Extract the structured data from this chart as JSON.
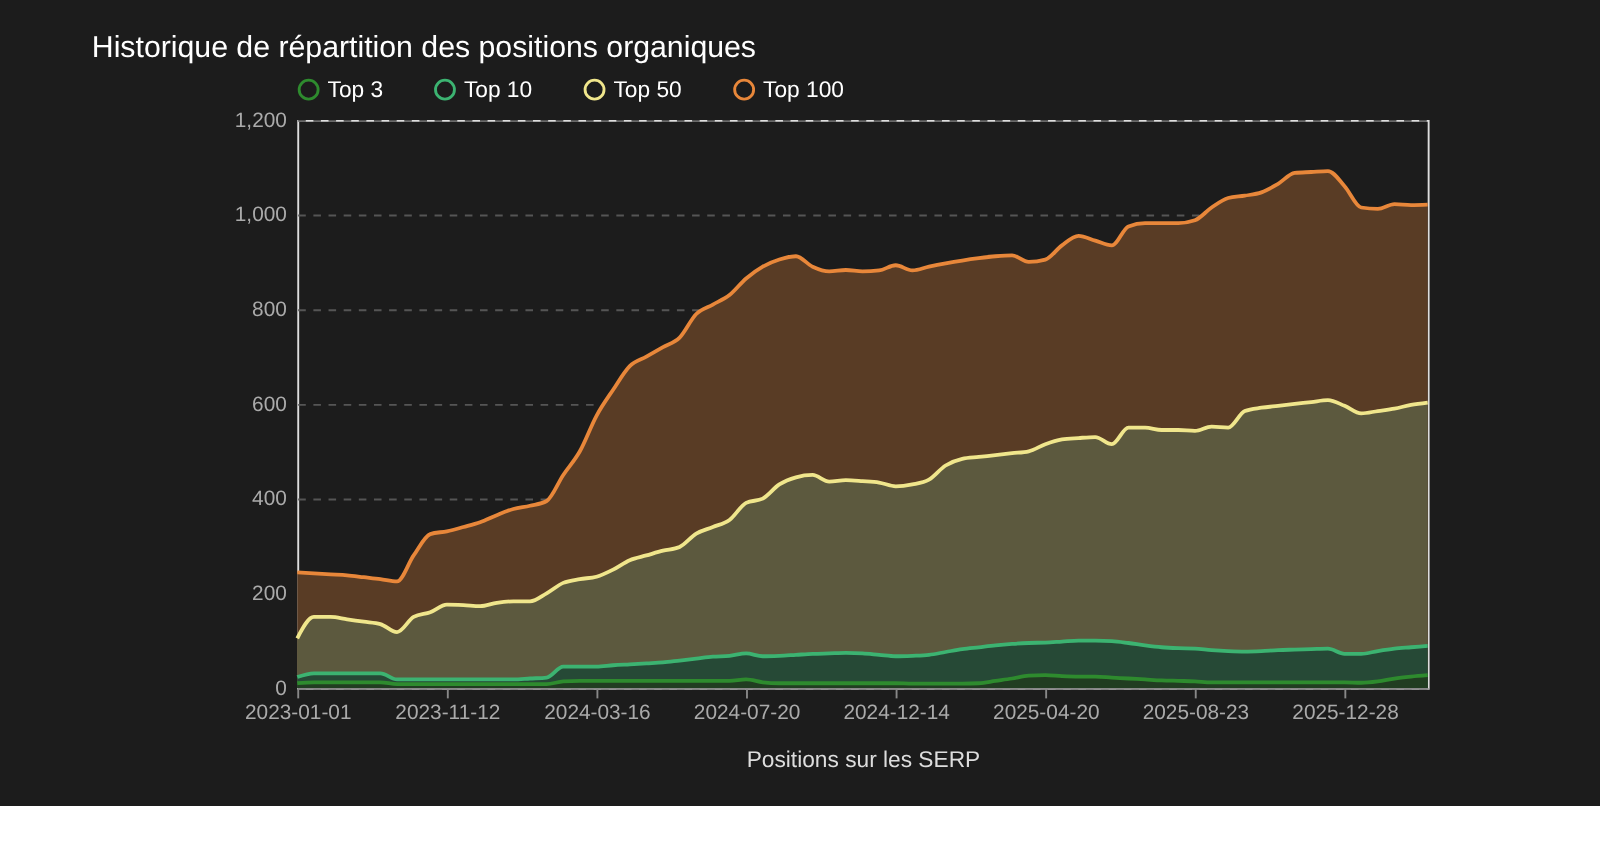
{
  "chart_data": {
    "type": "area",
    "title": "Historique de répartition des positions organiques",
    "xlabel": "Positions sur les SERP",
    "categories": [
      "2023-01-01",
      null,
      null,
      null,
      null,
      null,
      null,
      null,
      null,
      "2023-11-12",
      null,
      null,
      null,
      null,
      null,
      null,
      null,
      null,
      "2024-03-16",
      null,
      null,
      null,
      null,
      null,
      null,
      null,
      null,
      "2024-07-20",
      null,
      null,
      null,
      null,
      null,
      null,
      null,
      null,
      "2024-12-14",
      null,
      null,
      null,
      null,
      null,
      null,
      null,
      null,
      "2025-04-20",
      null,
      null,
      null,
      null,
      null,
      null,
      null,
      null,
      "2025-08-23",
      null,
      null,
      null,
      null,
      null,
      null,
      null,
      null,
      "2025-12-28",
      null,
      null,
      null,
      null,
      null
    ],
    "series": [
      {
        "name": "Top 3",
        "color": "#2e8b2e",
        "values": [
          10,
          12,
          12,
          12,
          12,
          12,
          8,
          8,
          8,
          8,
          8,
          8,
          8,
          8,
          8,
          8,
          14,
          15,
          15,
          15,
          15,
          15,
          15,
          15,
          15,
          15,
          15,
          18,
          12,
          10,
          10,
          10,
          10,
          10,
          10,
          10,
          10,
          9,
          9,
          9,
          9,
          10,
          15,
          20,
          26,
          27,
          25,
          24,
          24,
          22,
          20,
          18,
          16,
          15,
          14,
          12,
          12,
          12,
          12,
          12,
          12,
          12,
          12,
          12,
          11,
          14,
          20,
          24,
          27
        ]
      },
      {
        "name": "Top 10",
        "color": "#3cb371",
        "values": [
          23,
          31,
          31,
          31,
          31,
          31,
          18,
          18,
          18,
          18,
          18,
          18,
          18,
          18,
          20,
          22,
          45,
          45,
          45,
          48,
          50,
          52,
          54,
          58,
          62,
          66,
          68,
          73,
          67,
          68,
          70,
          72,
          73,
          74,
          73,
          70,
          67,
          68,
          70,
          76,
          82,
          86,
          90,
          93,
          95,
          96,
          98,
          100,
          100,
          99,
          95,
          90,
          86,
          84,
          83,
          80,
          78,
          77,
          78,
          80,
          81,
          82,
          83,
          72,
          72,
          78,
          83,
          86,
          89
        ]
      },
      {
        "name": "Top 50",
        "color": "#f0e68c",
        "values": [
          105,
          150,
          150,
          145,
          140,
          135,
          118,
          150,
          160,
          176,
          175,
          173,
          180,
          183,
          183,
          200,
          222,
          230,
          235,
          250,
          270,
          280,
          290,
          298,
          326,
          340,
          355,
          391,
          400,
          430,
          445,
          450,
          436,
          439,
          437,
          434,
          426,
          430,
          440,
          470,
          484,
          488,
          492,
          496,
          500,
          515,
          525,
          528,
          530,
          515,
          550,
          550,
          545,
          545,
          543,
          552,
          550,
          585,
          592,
          596,
          600,
          604,
          608,
          596,
          580,
          585,
          590,
          598,
          603
        ]
      },
      {
        "name": "Top 100",
        "color": "#e8873a",
        "values": [
          244,
          242,
          240,
          238,
          234,
          230,
          225,
          280,
          325,
          331,
          340,
          350,
          365,
          378,
          385,
          395,
          450,
          500,
          575,
          630,
          680,
          700,
          720,
          740,
          790,
          810,
          830,
          865,
          890,
          905,
          912,
          890,
          880,
          883,
          880,
          882,
          893,
          882,
          890,
          897,
          903,
          908,
          912,
          914,
          900,
          905,
          935,
          955,
          945,
          935,
          975,
          982,
          982,
          982,
          988,
          1015,
          1035,
          1040,
          1047,
          1065,
          1088,
          1090,
          1092,
          1060,
          1015,
          1012,
          1022,
          1020,
          1021
        ]
      }
    ],
    "ylim": [
      0,
      1200
    ],
    "yticks": [
      0,
      200,
      400,
      600,
      800,
      {
        "value": 1000,
        "label": "1,000"
      },
      {
        "value": 1200,
        "label": "1,200"
      }
    ],
    "grid": "y",
    "legend": "top",
    "line_style": "solid"
  }
}
